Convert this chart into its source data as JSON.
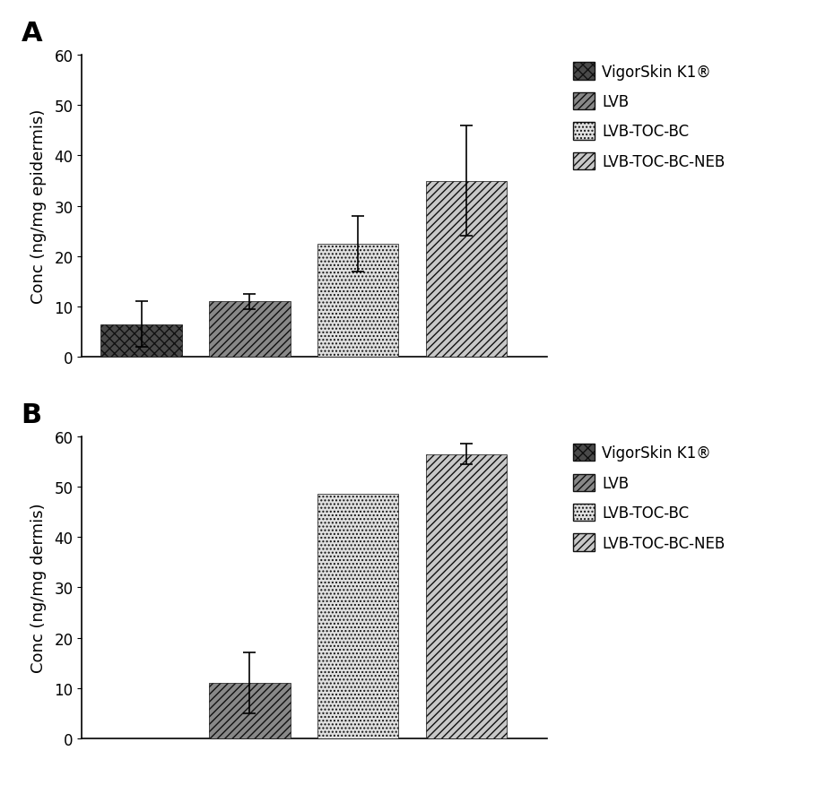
{
  "panel_A": {
    "label": "A",
    "ylabel": "Conc (ng/mg epidermis)",
    "values": [
      6.5,
      11.0,
      22.5,
      35.0
    ],
    "errors": [
      4.5,
      1.5,
      5.5,
      11.0
    ],
    "ylim": [
      0,
      60
    ],
    "yticks": [
      0,
      10,
      20,
      30,
      40,
      50,
      60
    ]
  },
  "panel_B": {
    "label": "B",
    "ylabel": "Conc (ng/mg dermis)",
    "values": [
      0.0,
      11.0,
      48.5,
      56.5
    ],
    "errors": [
      0.0,
      6.0,
      0.0,
      2.0
    ],
    "ylim": [
      0,
      60
    ],
    "yticks": [
      0,
      10,
      20,
      30,
      40,
      50,
      60
    ]
  },
  "legend_labels": [
    "VigorSkin K1®",
    "LVB",
    "LVB-TOC-BC",
    "LVB-TOC-BC-NEB"
  ],
  "bar_positions": [
    1,
    2,
    3,
    4
  ],
  "bar_width": 0.75,
  "background_color": "#ffffff",
  "ylabel_fontsize": 13,
  "tick_fontsize": 12,
  "legend_fontsize": 12,
  "panel_label_fontsize": 22,
  "bar_styles": [
    {
      "facecolor": "#4a4a4a",
      "hatch": "xxx",
      "edgecolor": "#111111",
      "linewidth": 0.5
    },
    {
      "facecolor": "#888888",
      "hatch": "////",
      "edgecolor": "#111111",
      "linewidth": 0.5
    },
    {
      "facecolor": "#e0e0e0",
      "hatch": "....",
      "edgecolor": "#111111",
      "linewidth": 0.5
    },
    {
      "facecolor": "#c8c8c8",
      "hatch": "////",
      "edgecolor": "#111111",
      "linewidth": 0.5
    }
  ]
}
